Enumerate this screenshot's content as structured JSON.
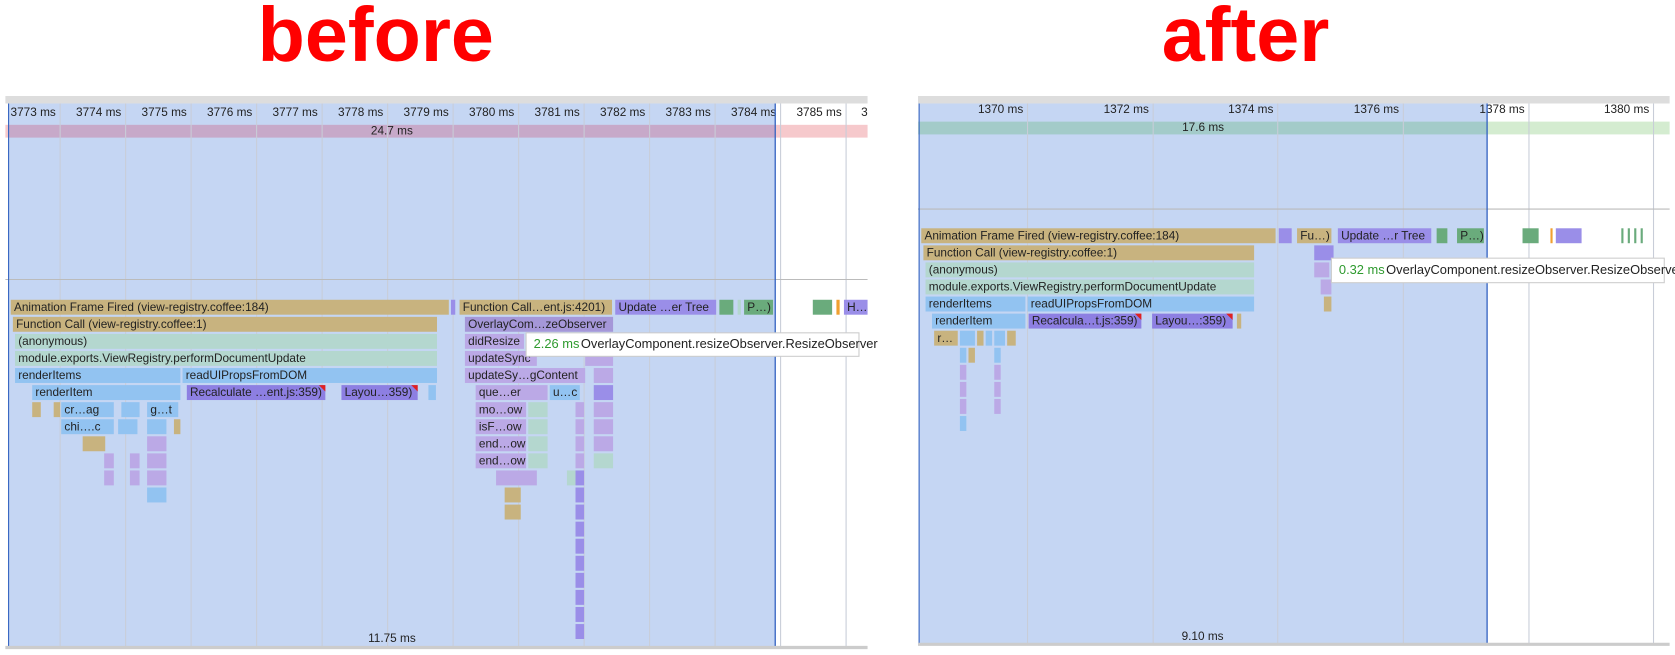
{
  "panels": [
    {
      "heading": "before",
      "ticks": [
        "3773 ms",
        "3774 ms",
        "3775 ms",
        "3776 ms",
        "3777 ms",
        "3778 ms",
        "3779 ms",
        "3780 ms",
        "3781 ms",
        "3782 ms",
        "3783 ms",
        "3784 ms",
        "3785 ms",
        "3"
      ],
      "frame_duration": "24.7 ms",
      "blocks": [
        "Animation Frame Fired (view-registry.coffee:184)",
        "Function Call…ent.js:4201)",
        "Update …er Tree",
        "P…)",
        "H…",
        "Function Call (view-registry.coffee:1)",
        "OverlayCom…zeObserver",
        "(anonymous)",
        "didResize",
        "module.exports.ViewRegistry.performDocumentUpdate",
        "updateSync",
        "renderItems",
        "readUIPropsFromDOM",
        "updateSy…gContent",
        "renderItem",
        "Recalculate …ent.js:359)",
        "Layou…359)",
        "que…er",
        "u…c",
        "cr…ag",
        "g…t",
        "mo…ow",
        "chi….c",
        "isF…ow",
        "end…ow",
        "end…ow"
      ],
      "tooltip": {
        "time": "2.26 ms",
        "name": "OverlayComponent.resizeObserver.ResizeObserver"
      },
      "selection_duration": "11.75 ms"
    },
    {
      "heading": "after",
      "ticks": [
        "1370 ms",
        "1372 ms",
        "1374 ms",
        "1376 ms",
        "1378 ms",
        "1380 ms"
      ],
      "frame_duration": "17.6 ms",
      "blocks": [
        "Animation Frame Fired (view-registry.coffee:184)",
        "Fu…)",
        "Update …r Tree",
        "P…)",
        "Function Call (view-registry.coffee:1)",
        "(anonymous)",
        "module.exports.ViewRegistry.performDocumentUpdate",
        "renderItems",
        "readUIPropsFromDOM",
        "renderItem",
        "Recalcula…t.js:359)",
        "Layou…:359)",
        "r…"
      ],
      "tooltip": {
        "time": "0.32 ms",
        "name": "OverlayComponent.resizeObserver.ResizeObserver"
      },
      "selection_duration": "9.10 ms"
    }
  ]
}
